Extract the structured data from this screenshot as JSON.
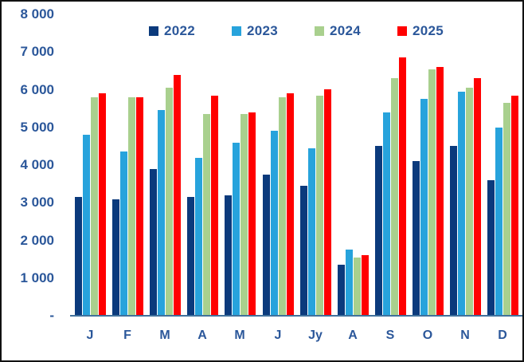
{
  "chart_data": {
    "type": "bar",
    "title": "",
    "categories": [
      "J",
      "F",
      "M",
      "A",
      "M",
      "J",
      "Jy",
      "A",
      "S",
      "O",
      "N",
      "D"
    ],
    "series": [
      {
        "name": "2022",
        "color": "#0B3A7C",
        "values": [
          3150,
          3100,
          3900,
          3150,
          3200,
          3750,
          3450,
          1350,
          4500,
          4100,
          4500,
          3600
        ]
      },
      {
        "name": "2023",
        "color": "#27A3DC",
        "values": [
          4800,
          4350,
          5450,
          4200,
          4600,
          4900,
          4450,
          1750,
          5400,
          5750,
          5950,
          5000
        ]
      },
      {
        "name": "2024",
        "color": "#A9D08E",
        "values": [
          5800,
          5800,
          6050,
          5350,
          5350,
          5800,
          5850,
          1550,
          6300,
          6550,
          6050,
          5650
        ]
      },
      {
        "name": "2025",
        "color": "#FF0000",
        "values": [
          5900,
          5800,
          6400,
          5850,
          5400,
          5900,
          6000,
          1600,
          6850,
          6600,
          6300,
          5850
        ]
      }
    ],
    "ylim": [
      0,
      8000
    ],
    "y_ticks": [
      {
        "value": 0,
        "label": "-"
      },
      {
        "value": 1000,
        "label": "1 000"
      },
      {
        "value": 2000,
        "label": "2 000"
      },
      {
        "value": 3000,
        "label": "3 000"
      },
      {
        "value": 4000,
        "label": "4 000"
      },
      {
        "value": 5000,
        "label": "5 000"
      },
      {
        "value": 6000,
        "label": "6 000"
      },
      {
        "value": 7000,
        "label": "7 000"
      },
      {
        "value": 8000,
        "label": "8 000"
      }
    ],
    "legend_position": "top-center",
    "grid": false
  },
  "styles": {
    "text_color": "#2B579A",
    "axis_line_color": "#41719C",
    "background": "#FFFFFF",
    "border_color": "#111111"
  }
}
